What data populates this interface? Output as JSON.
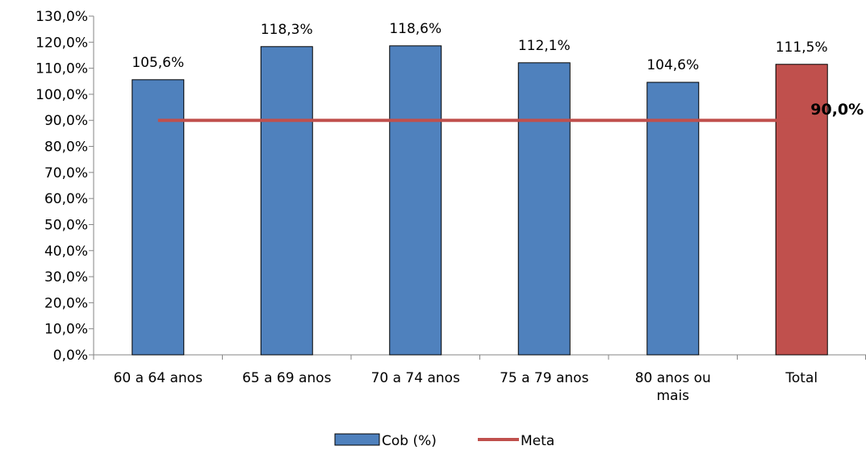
{
  "chart_data": {
    "type": "bar",
    "categories": [
      "60 a 64 anos",
      "65 a 69 anos",
      "70 a 74 anos",
      "75 a 79 anos",
      "80 anos ou mais",
      "Total"
    ],
    "category_lines": [
      [
        "60 a 64 anos"
      ],
      [
        "65 a 69 anos"
      ],
      [
        "70 a 74 anos"
      ],
      [
        "75 a 79 anos"
      ],
      [
        "80 anos ou",
        "mais"
      ],
      [
        "Total"
      ]
    ],
    "series": [
      {
        "name": "Cob (%)",
        "values": [
          105.6,
          118.3,
          118.6,
          112.1,
          104.6,
          111.5
        ],
        "labels": [
          "105,6%",
          "118,3%",
          "118,6%",
          "112,1%",
          "104,6%",
          "111,5%"
        ],
        "color": "#4F81BD",
        "highlight_color": "#C0504D",
        "highlight_index": 5
      },
      {
        "name": "Meta",
        "type": "line",
        "value": 90.0,
        "label": "90,0%",
        "color": "#C0504D"
      }
    ],
    "ylim": [
      0,
      130
    ],
    "yticks": [
      0,
      10,
      20,
      30,
      40,
      50,
      60,
      70,
      80,
      90,
      100,
      110,
      120,
      130
    ],
    "ytick_labels": [
      "0,0%",
      "10,0%",
      "20,0%",
      "30,0%",
      "40,0%",
      "50,0%",
      "60,0%",
      "70,0%",
      "80,0%",
      "90,0%",
      "100,0%",
      "110,0%",
      "120,0%",
      "130,0%"
    ],
    "title": "",
    "xlabel": "",
    "ylabel": "",
    "grid": false,
    "legend_position": "bottom"
  }
}
